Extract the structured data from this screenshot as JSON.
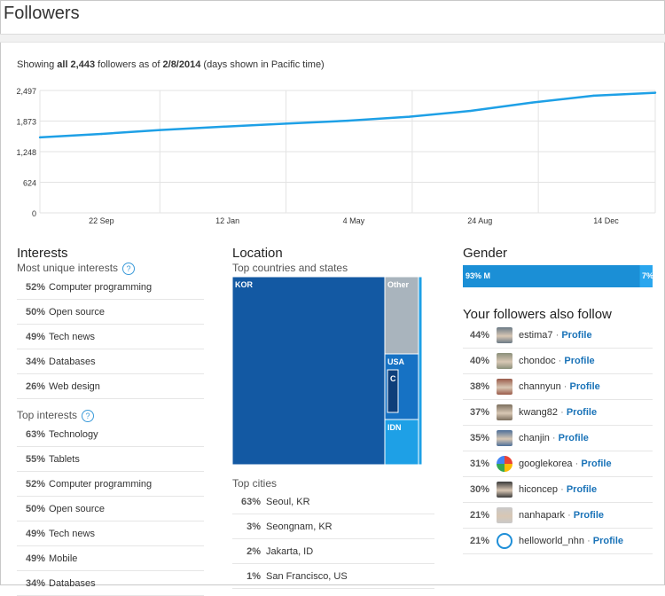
{
  "page": {
    "title": "Followers"
  },
  "summary": {
    "prefix": "Showing ",
    "count": "all 2,443",
    "middle": " followers as of ",
    "date": "2/8/2014",
    "suffix": " (days shown in Pacific time)"
  },
  "chart_data": {
    "type": "line",
    "title": "",
    "xlabel": "",
    "ylabel": "",
    "y_ticks": [
      0,
      624,
      1248,
      1873,
      2497
    ],
    "y_tick_labels": [
      "0",
      "624",
      "1,248",
      "1,873",
      "2,497"
    ],
    "ylim": [
      0,
      2497
    ],
    "x_tick_labels": [
      "22 Sep",
      "12 Jan",
      "4 May",
      "24 Aug",
      "14 Dec"
    ],
    "x_tick_positions": [
      0.1,
      0.305,
      0.51,
      0.715,
      0.92
    ],
    "x_grid_positions": [
      0.195,
      0.4,
      0.605,
      0.81
    ],
    "grid": true,
    "color": "#1ea0e6",
    "series": [
      {
        "x": [
          0.0,
          0.1,
          0.195,
          0.3,
          0.4,
          0.5,
          0.6,
          0.7,
          0.8,
          0.9,
          1.0
        ],
        "values": [
          1540,
          1610,
          1690,
          1760,
          1820,
          1880,
          1960,
          2080,
          2250,
          2390,
          2450
        ]
      }
    ]
  },
  "interests": {
    "title": "Interests",
    "unique_title": "Most unique interests",
    "help_icon": "?",
    "unique": [
      {
        "pct": "52%",
        "label": "Computer programming"
      },
      {
        "pct": "50%",
        "label": "Open source"
      },
      {
        "pct": "49%",
        "label": "Tech news"
      },
      {
        "pct": "34%",
        "label": "Databases"
      },
      {
        "pct": "26%",
        "label": "Web design"
      }
    ],
    "top_title": "Top interests",
    "top": [
      {
        "pct": "63%",
        "label": "Technology"
      },
      {
        "pct": "55%",
        "label": "Tablets"
      },
      {
        "pct": "52%",
        "label": "Computer programming"
      },
      {
        "pct": "50%",
        "label": "Open source"
      },
      {
        "pct": "49%",
        "label": "Tech news"
      },
      {
        "pct": "49%",
        "label": "Mobile"
      },
      {
        "pct": "34%",
        "label": "Databases"
      }
    ]
  },
  "location": {
    "title": "Location",
    "countries_title": "Top countries and states",
    "treemap": [
      {
        "label": "KOR",
        "value": 0.805,
        "color": "#1359a3"
      },
      {
        "label": "Other",
        "value": 0.085,
        "color": "#a9b4bd"
      },
      {
        "label": "USA",
        "value": 0.05,
        "color": "#1672c4"
      },
      {
        "label": "C",
        "value": 0.01,
        "color": "#0e3f7a"
      },
      {
        "label": "IDN",
        "value": 0.05,
        "color": "#1ea0e6"
      }
    ],
    "cities_title": "Top cities",
    "cities": [
      {
        "pct": "63%",
        "label": "Seoul, KR"
      },
      {
        "pct": "3%",
        "label": "Seongnam, KR"
      },
      {
        "pct": "2%",
        "label": "Jakarta, ID"
      },
      {
        "pct": "1%",
        "label": "San Francisco, US"
      }
    ]
  },
  "gender": {
    "title": "Gender",
    "male_label": "93% M",
    "male_value": 0.93,
    "female_label": "7%",
    "male_color": "#1b8fd6",
    "female_color": "#2aa6ee"
  },
  "also_follow": {
    "title": "Your followers also follow",
    "dot": "·",
    "profile_label": "Profile",
    "items": [
      {
        "pct": "44%",
        "name": "estima7",
        "avatar_icon": "person-photo-icon",
        "color": "#6b7a86"
      },
      {
        "pct": "40%",
        "name": "chondoc",
        "avatar_icon": "landscape-photo-icon",
        "color": "#8a8f7a"
      },
      {
        "pct": "38%",
        "name": "channyun",
        "avatar_icon": "person-photo-icon",
        "color": "#9a5b4a"
      },
      {
        "pct": "37%",
        "name": "kwang82",
        "avatar_icon": "person-photo-icon",
        "color": "#7c6f5e"
      },
      {
        "pct": "35%",
        "name": "chanjin",
        "avatar_icon": "person-photo-icon",
        "color": "#4d6f99"
      },
      {
        "pct": "31%",
        "name": "googlekorea",
        "avatar_icon": "google-logo-icon",
        "color": "#ffffff"
      },
      {
        "pct": "30%",
        "name": "hiconcep",
        "avatar_icon": "person-photo-icon",
        "color": "#3a3a3a"
      },
      {
        "pct": "21%",
        "name": "nanhapark",
        "avatar_icon": "person-photo-icon",
        "color": "#c9c9c9"
      },
      {
        "pct": "21%",
        "name": "helloworld_nhn",
        "avatar_icon": "helloworld-logo-icon",
        "color": "#1f8fd8"
      }
    ]
  }
}
